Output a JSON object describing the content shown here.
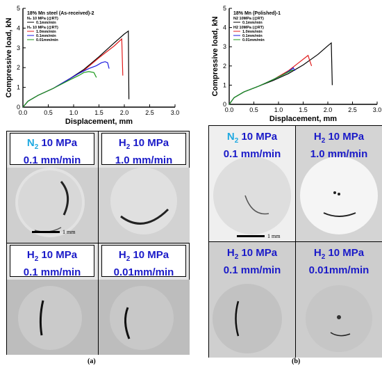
{
  "chart_data": [
    {
      "type": "line",
      "xlabel": "Displacement, mm",
      "ylabel": "Compressive load, kN",
      "xlim": [
        0,
        3.0
      ],
      "ylim": [
        0,
        5
      ],
      "xticks": [
        "0.0",
        "0.5",
        "1.0",
        "1.5",
        "2.0",
        "2.5",
        "3.0"
      ],
      "yticks": [
        "0",
        "1",
        "2",
        "3",
        "4",
        "5"
      ],
      "legend": {
        "title": "18% Mn steel (As-received)-2",
        "n2_heading": "N₂ 10 MPa (@RT)",
        "n2_items": [
          "0.1mm/min"
        ],
        "h2_heading": "H₂ 10 MPa (@RT)",
        "h2_items": [
          "1.0mm/min",
          "0.1mm/min",
          "0.01mm/min"
        ]
      },
      "series": [
        {
          "name": "N2 0.1mm/min",
          "color": "#000000",
          "points": [
            [
              0,
              0
            ],
            [
              0.1,
              0.3
            ],
            [
              0.3,
              0.6
            ],
            [
              0.6,
              0.95
            ],
            [
              0.9,
              1.4
            ],
            [
              1.2,
              1.9
            ],
            [
              1.5,
              2.55
            ],
            [
              1.8,
              3.25
            ],
            [
              2.0,
              3.7
            ],
            [
              2.08,
              3.85
            ],
            [
              2.09,
              0.4
            ]
          ]
        },
        {
          "name": "H2 1.0mm/min",
          "color": "#e01b1b",
          "points": [
            [
              0,
              0
            ],
            [
              0.1,
              0.3
            ],
            [
              0.3,
              0.6
            ],
            [
              0.6,
              0.95
            ],
            [
              0.9,
              1.4
            ],
            [
              1.2,
              1.85
            ],
            [
              1.5,
              2.5
            ],
            [
              1.8,
              3.1
            ],
            [
              1.95,
              3.45
            ],
            [
              1.97,
              1.6
            ]
          ]
        },
        {
          "name": "H2 0.1mm/min",
          "color": "#1a1ae0",
          "points": [
            [
              0,
              0
            ],
            [
              0.1,
              0.3
            ],
            [
              0.3,
              0.6
            ],
            [
              0.6,
              0.95
            ],
            [
              0.9,
              1.4
            ],
            [
              1.1,
              1.7
            ],
            [
              1.3,
              1.95
            ],
            [
              1.45,
              2.1
            ],
            [
              1.55,
              2.25
            ],
            [
              1.62,
              2.3
            ],
            [
              1.67,
              2.25
            ],
            [
              1.7,
              1.95
            ]
          ]
        },
        {
          "name": "H2 0.01mm/min",
          "color": "#1a9a1a",
          "points": [
            [
              0,
              0
            ],
            [
              0.1,
              0.3
            ],
            [
              0.3,
              0.6
            ],
            [
              0.6,
              0.95
            ],
            [
              0.9,
              1.35
            ],
            [
              1.1,
              1.6
            ],
            [
              1.2,
              1.75
            ],
            [
              1.3,
              1.8
            ],
            [
              1.4,
              1.75
            ],
            [
              1.45,
              1.5
            ]
          ]
        }
      ]
    },
    {
      "type": "line",
      "xlabel": "Displacement, mm",
      "ylabel": "Compressive load, kN",
      "xlim": [
        0,
        3.0
      ],
      "ylim": [
        0,
        5
      ],
      "xticks": [
        "0.0",
        "0.5",
        "1.0",
        "1.5",
        "2.0",
        "2.5",
        "3.0"
      ],
      "yticks": [
        "0",
        "1",
        "2",
        "3",
        "4",
        "5"
      ],
      "legend": {
        "title": "18% Mn (Polished)-1",
        "n2_heading": "N2 10MPa (@RT)",
        "n2_items": [
          "0.1mm/min"
        ],
        "h2_heading": "H2 10MPa (@RT)",
        "h2_items": [
          "1.0mm/min",
          "0.1mm/min",
          "0.01mm/min"
        ]
      },
      "series": [
        {
          "name": "N2 0.1mm/min",
          "color": "#000000",
          "points": [
            [
              0,
              0
            ],
            [
              0.1,
              0.35
            ],
            [
              0.3,
              0.65
            ],
            [
              0.6,
              0.95
            ],
            [
              0.9,
              1.25
            ],
            [
              1.2,
              1.6
            ],
            [
              1.5,
              2.05
            ],
            [
              1.8,
              2.6
            ],
            [
              2.0,
              3.05
            ],
            [
              2.07,
              3.2
            ],
            [
              2.09,
              1.0
            ]
          ]
        },
        {
          "name": "H2 1.0mm/min",
          "color": "#e01b1b",
          "points": [
            [
              0,
              0
            ],
            [
              0.1,
              0.35
            ],
            [
              0.3,
              0.65
            ],
            [
              0.6,
              0.95
            ],
            [
              0.9,
              1.3
            ],
            [
              1.2,
              1.75
            ],
            [
              1.4,
              2.15
            ],
            [
              1.55,
              2.45
            ],
            [
              1.6,
              2.55
            ],
            [
              1.63,
              2.3
            ],
            [
              1.67,
              2.0
            ]
          ]
        },
        {
          "name": "H2 0.1mm/min",
          "color": "#1a1ae0",
          "points": [
            [
              0,
              0
            ],
            [
              0.1,
              0.35
            ],
            [
              0.3,
              0.65
            ],
            [
              0.6,
              0.95
            ],
            [
              0.9,
              1.3
            ],
            [
              1.1,
              1.55
            ],
            [
              1.25,
              1.8
            ],
            [
              1.3,
              1.9
            ],
            [
              1.33,
              1.75
            ]
          ]
        },
        {
          "name": "H2 0.01mm/min",
          "color": "#1a9a1a",
          "points": [
            [
              0,
              0
            ],
            [
              0.1,
              0.35
            ],
            [
              0.3,
              0.65
            ],
            [
              0.6,
              0.95
            ],
            [
              0.9,
              1.3
            ],
            [
              1.1,
              1.55
            ],
            [
              1.25,
              1.75
            ],
            [
              1.3,
              1.8
            ]
          ]
        }
      ]
    }
  ],
  "micrographs": {
    "a": [
      {
        "gas": "N",
        "sub": "2",
        "pressure": "10 MPa",
        "rate": "0.1 mm/min",
        "gas_color": "#1fa9e1"
      },
      {
        "gas": "H",
        "sub": "2",
        "pressure": "10 MPa",
        "rate": "1.0 mm/min",
        "gas_color": "#1a1ac8"
      },
      {
        "gas": "H",
        "sub": "2",
        "pressure": "10 MPa",
        "rate": "0.1 mm/min",
        "gas_color": "#1a1ac8"
      },
      {
        "gas": "H",
        "sub": "2",
        "pressure": "10 MPa",
        "rate": "0.01mm/min",
        "gas_color": "#1a1ac8"
      }
    ],
    "b": [
      {
        "gas": "N",
        "sub": "2",
        "pressure": "10 MPa",
        "rate": "0.1 mm/min",
        "gas_color": "#1fa9e1"
      },
      {
        "gas": "H",
        "sub": "2",
        "pressure": "10 MPa",
        "rate": "1.0 mm/min",
        "gas_color": "#1a1ac8"
      },
      {
        "gas": "H",
        "sub": "2",
        "pressure": "10 MPa",
        "rate": "0.1 mm/min",
        "gas_color": "#1a1ac8"
      },
      {
        "gas": "H",
        "sub": "2",
        "pressure": "10 MPa",
        "rate": "0.01mm/min",
        "gas_color": "#1a1ac8"
      }
    ],
    "scale_label": "1 mm"
  },
  "captions": {
    "a": "(a)",
    "b": "(b)"
  }
}
